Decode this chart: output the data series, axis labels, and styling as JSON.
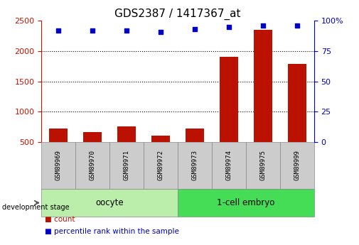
{
  "title": "GDS2387 / 1417367_at",
  "samples": [
    "GSM89969",
    "GSM89970",
    "GSM89971",
    "GSM89972",
    "GSM89973",
    "GSM89974",
    "GSM89975",
    "GSM89999"
  ],
  "counts": [
    720,
    665,
    760,
    605,
    720,
    1910,
    2350,
    1790
  ],
  "percentile_ranks": [
    92,
    92,
    92,
    91,
    93,
    95,
    96,
    96
  ],
  "ylim_left": [
    500,
    2500
  ],
  "ylim_right": [
    0,
    100
  ],
  "yticks_left": [
    500,
    1000,
    1500,
    2000,
    2500
  ],
  "yticks_right": [
    0,
    25,
    50,
    75,
    100
  ],
  "bar_color": "#bb1100",
  "scatter_color": "#0000cc",
  "bar_width": 0.55,
  "groups": [
    {
      "label": "oocyte",
      "start": 0,
      "end": 3
    },
    {
      "label": "1-cell embryo",
      "start": 4,
      "end": 7
    }
  ],
  "group_colors": [
    "#bbeeaa",
    "#44dd55"
  ],
  "sample_box_color": "#cccccc",
  "legend_count_color": "#bb1100",
  "legend_pct_color": "#0000cc",
  "background_color": "#ffffff",
  "title_fontsize": 11,
  "axis_color_left": "#cc1100",
  "axis_color_right": "#0000cc",
  "grid_yticks": [
    1000,
    1500,
    2000
  ],
  "dev_stage_text": "development stage"
}
